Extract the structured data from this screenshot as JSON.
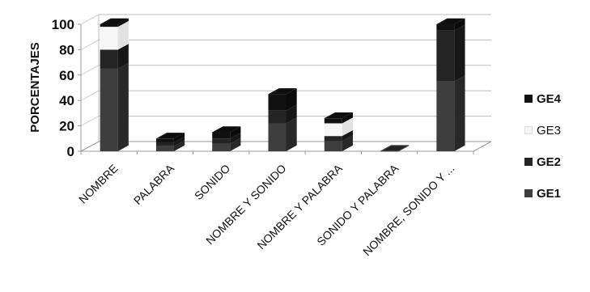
{
  "colors": {
    "GE1": "#3e3e3e",
    "GE2": "#242424",
    "GE3": "#f6f6f6",
    "GE4": "#111111"
  },
  "chart_data": {
    "type": "bar",
    "stacked": true,
    "three_d": true,
    "title": "",
    "xlabel": "",
    "ylabel": "PORCENTAJES",
    "ylim": [
      0,
      100
    ],
    "yticks": [
      0,
      20,
      40,
      60,
      80,
      100
    ],
    "grid": true,
    "legend_position": "right",
    "categories": [
      "NOMBRE",
      "PALABRA",
      "SONIDO",
      "NOMBRE Y SONIDO",
      "NOMBRE Y PALABRA",
      "SONIDO Y PALABRA",
      "NOMBRE, SONIDO Y ..."
    ],
    "series": [
      {
        "name": "GE1",
        "values": [
          65,
          4,
          6,
          22,
          8,
          0,
          55
        ]
      },
      {
        "name": "GE2",
        "values": [
          15,
          3,
          4,
          10,
          4,
          0,
          40
        ]
      },
      {
        "name": "GE3",
        "values": [
          18,
          0,
          0,
          0,
          10,
          0,
          0
        ]
      },
      {
        "name": "GE4",
        "values": [
          2,
          3,
          5,
          13,
          4,
          0,
          5
        ]
      }
    ],
    "legend_order": [
      "GE4",
      "GE3",
      "GE2",
      "GE1"
    ]
  }
}
